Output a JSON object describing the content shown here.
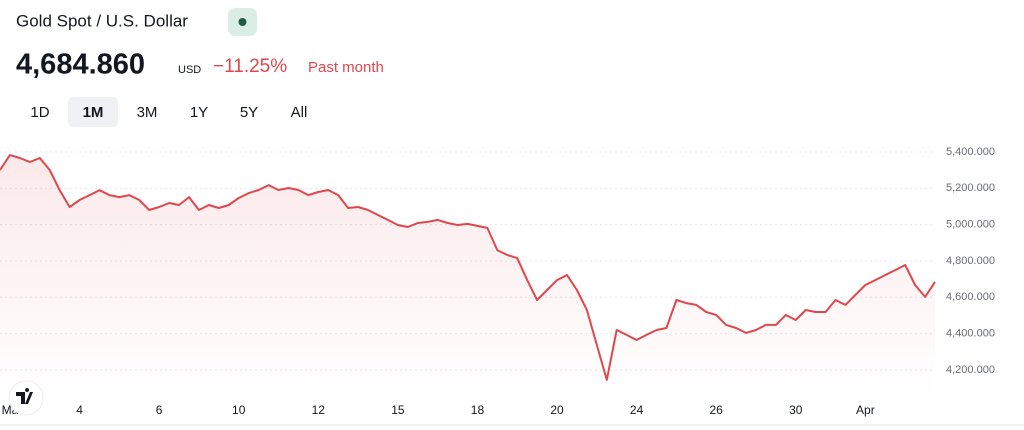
{
  "header": {
    "title": "Gold Spot / U.S. Dollar",
    "price": "4,684.860",
    "currency": "USD",
    "change": "−11.25%",
    "period": "Past month"
  },
  "range_buttons": {
    "labels": [
      "1D",
      "1M",
      "3M",
      "1Y",
      "5Y",
      "All"
    ],
    "selected": 1
  },
  "chart_data": {
    "type": "area",
    "color": "#e0474c",
    "values": [
      5301,
      5383,
      5367,
      5345,
      5367,
      5301,
      5190,
      5097,
      5136,
      5163,
      5190,
      5163,
      5152,
      5163,
      5136,
      5081,
      5097,
      5119,
      5108,
      5152,
      5081,
      5108,
      5092,
      5108,
      5147,
      5174,
      5191,
      5218,
      5191,
      5202,
      5191,
      5163,
      5180,
      5191,
      5163,
      5092,
      5097,
      5081,
      5053,
      5026,
      4998,
      4987,
      5009,
      5015,
      5026,
      5009,
      4998,
      5004,
      4993,
      4982,
      4860,
      4833,
      4816,
      4695,
      4585,
      4640,
      4695,
      4723,
      4640,
      4530,
      4338,
      4145,
      4420,
      4393,
      4365,
      4393,
      4420,
      4431,
      4585,
      4568,
      4558,
      4519,
      4503,
      4448,
      4431,
      4404,
      4420,
      4448,
      4448,
      4503,
      4475,
      4530,
      4519,
      4519,
      4585,
      4558,
      4613,
      4668,
      4695,
      4723,
      4750,
      4778,
      4668,
      4602,
      4685
    ],
    "xlim": [
      0,
      94
    ],
    "xticks": [
      {
        "value": 1,
        "label": "Ma"
      },
      {
        "value": 8,
        "label": "4"
      },
      {
        "value": 16,
        "label": "6"
      },
      {
        "value": 24,
        "label": "10"
      },
      {
        "value": 32,
        "label": "12"
      },
      {
        "value": 40,
        "label": "15"
      },
      {
        "value": 48,
        "label": "18"
      },
      {
        "value": 56,
        "label": "20"
      },
      {
        "value": 64,
        "label": "24"
      },
      {
        "value": 72,
        "label": "26"
      },
      {
        "value": 80,
        "label": "30"
      },
      {
        "value": 87,
        "label": "Apr"
      }
    ],
    "ylim": [
      4050,
      5470
    ],
    "yticks": [
      {
        "value": 4200,
        "label": "4,200.000"
      },
      {
        "value": 4400,
        "label": "4,400.000"
      },
      {
        "value": 4600,
        "label": "4,600.000"
      },
      {
        "value": 4800,
        "label": "4,800.000"
      },
      {
        "value": 5000,
        "label": "5,000.000"
      },
      {
        "value": 5200,
        "label": "5,200.000"
      },
      {
        "value": 5400,
        "label": "5,400.000"
      }
    ],
    "grid": true
  }
}
